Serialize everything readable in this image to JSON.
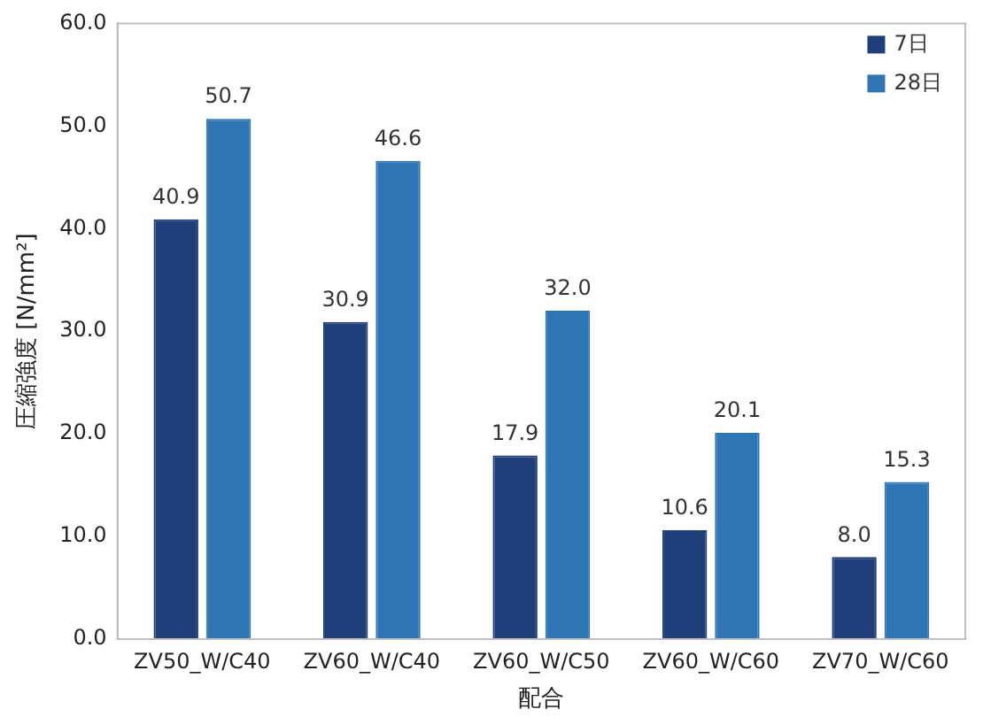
{
  "chart_data": {
    "type": "bar",
    "xlabel": "配合",
    "ylabel": "圧縮強度 [N/mm²]",
    "categories": [
      "ZV50_W/C40",
      "ZV60_W/C40",
      "ZV60_W/C50",
      "ZV60_W/C60",
      "ZV70_W/C60"
    ],
    "series": [
      {
        "name": "7日",
        "color": "#1f3f7a",
        "values": [
          40.9,
          30.9,
          17.9,
          10.6,
          8.0
        ],
        "value_labels": [
          "40.9",
          "30.9",
          "17.9",
          "10.6",
          "8.0"
        ]
      },
      {
        "name": "28日",
        "color": "#2e75b6",
        "values": [
          50.7,
          46.6,
          32.0,
          20.1,
          15.3
        ],
        "value_labels": [
          "50.7",
          "46.6",
          "32.0",
          "20.1",
          "15.3"
        ]
      }
    ],
    "ylim": [
      0,
      60
    ],
    "yticks": [
      {
        "value": 0,
        "label": "0.0"
      },
      {
        "value": 10,
        "label": "10.0"
      },
      {
        "value": 20,
        "label": "20.0"
      },
      {
        "value": 30,
        "label": "30.0"
      },
      {
        "value": 40,
        "label": "40.0"
      },
      {
        "value": 50,
        "label": "50.0"
      },
      {
        "value": 60,
        "label": "60.0"
      }
    ],
    "grid": false,
    "legend": "top right"
  }
}
